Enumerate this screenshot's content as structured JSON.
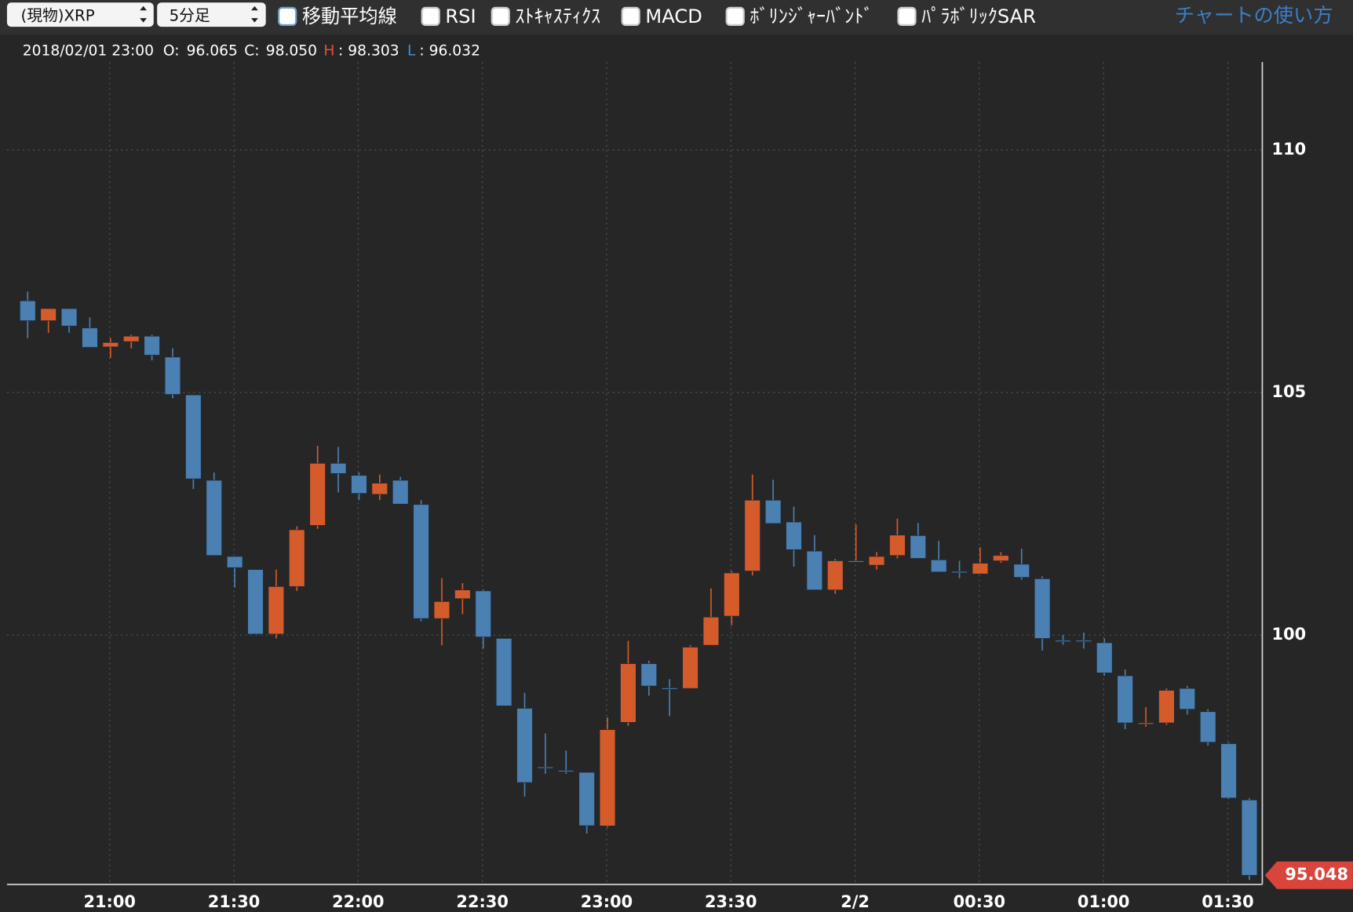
{
  "controls": {
    "symbol": "(現物)XRP",
    "interval": "5分足",
    "indicators": [
      "移動平均線",
      "RSI",
      "ｽﾄｷｬｽﾃｨｸｽ",
      "MACD",
      "ﾎﾞﾘﾝｼﾞｬｰﾊﾞﾝﾄﾞ",
      "ﾊﾟﾗﾎﾞﾘｯｸSAR"
    ],
    "help": "チャートの使い方"
  },
  "info": {
    "datetime": "2018/02/01 23:00",
    "open_label": "O:",
    "open": "96.065",
    "close_label": "C:",
    "close": "98.050",
    "high_label": "H",
    "high": ": 98.303",
    "low_label": "L",
    "low": ": 96.032"
  },
  "chart_data": {
    "type": "candlestick",
    "categories": [
      null,
      null,
      null,
      null,
      "21:00",
      null,
      null,
      null,
      null,
      null,
      "21:30",
      null,
      null,
      null,
      null,
      null,
      "22:00",
      null,
      null,
      null,
      null,
      null,
      "22:30",
      null,
      null,
      null,
      null,
      null,
      "23:00",
      null,
      null,
      null,
      null,
      null,
      "23:30",
      null,
      null,
      null,
      null,
      null,
      "2/2",
      null,
      null,
      null,
      null,
      null,
      "00:30",
      null,
      null,
      null,
      null,
      null,
      "01:00",
      null,
      null,
      null,
      null,
      null,
      "01:30",
      null
    ],
    "open": [
      106.89,
      106.48,
      106.73,
      106.33,
      105.94,
      106.05,
      106.16,
      105.73,
      104.95,
      103.19,
      101.62,
      101.35,
      100.02,
      101.0,
      102.26,
      103.54,
      103.29,
      102.9,
      103.19,
      102.69,
      100.34,
      100.75,
      100.91,
      99.93,
      98.49,
      97.28,
      97.21,
      97.17,
      96.065,
      98.2,
      99.41,
      98.91,
      98.9,
      99.79,
      100.39,
      101.32,
      102.78,
      102.33,
      101.73,
      100.93,
      101.52,
      101.44,
      101.64,
      102.05,
      101.55,
      101.31,
      101.26,
      101.53,
      101.46,
      101.16,
      99.89,
      99.89,
      99.84,
      99.16,
      98.18,
      98.19,
      98.9,
      98.42,
      97.76,
      96.6
    ],
    "high": [
      107.08,
      106.73,
      106.73,
      106.55,
      106.12,
      106.19,
      106.19,
      105.91,
      104.95,
      103.35,
      101.62,
      101.35,
      101.35,
      102.24,
      103.9,
      103.88,
      103.35,
      103.31,
      103.26,
      102.78,
      101.17,
      101.07,
      100.94,
      99.93,
      98.81,
      97.97,
      97.62,
      97.17,
      98.303,
      99.88,
      99.47,
      99.09,
      99.79,
      100.96,
      101.32,
      103.31,
      103.2,
      102.65,
      102.06,
      101.57,
      102.28,
      101.71,
      102.4,
      102.31,
      101.94,
      101.53,
      101.81,
      101.71,
      101.78,
      101.21,
      100.0,
      100.05,
      99.93,
      99.29,
      98.51,
      98.9,
      98.95,
      98.47,
      97.79,
      96.64
    ],
    "low": [
      106.12,
      106.23,
      106.23,
      105.93,
      105.71,
      105.91,
      105.66,
      104.88,
      103.01,
      101.64,
      100.98,
      100.02,
      99.93,
      100.91,
      102.19,
      102.94,
      102.78,
      102.78,
      102.7,
      100.28,
      99.79,
      100.43,
      99.72,
      98.54,
      96.67,
      97.14,
      97.14,
      95.91,
      96.032,
      98.13,
      98.75,
      98.33,
      98.9,
      99.79,
      100.2,
      101.23,
      102.3,
      101.41,
      100.93,
      100.85,
      101.52,
      101.35,
      101.58,
      101.58,
      101.3,
      101.17,
      101.26,
      101.49,
      101.14,
      99.68,
      99.8,
      99.72,
      99.16,
      98.06,
      98.11,
      98.15,
      98.36,
      97.72,
      96.62,
      94.95
    ],
    "close": [
      106.48,
      106.73,
      106.37,
      105.93,
      106.03,
      106.16,
      105.77,
      104.96,
      103.22,
      101.64,
      101.39,
      100.02,
      101.0,
      102.17,
      103.54,
      103.33,
      102.92,
      103.13,
      102.7,
      100.34,
      100.69,
      100.93,
      99.96,
      98.54,
      96.96,
      97.26,
      97.19,
      96.07,
      98.05,
      99.41,
      98.95,
      98.9,
      99.75,
      100.37,
      101.28,
      102.78,
      102.3,
      101.76,
      100.93,
      101.53,
      101.53,
      101.62,
      102.06,
      101.58,
      101.3,
      101.3,
      101.48,
      101.64,
      101.19,
      99.93,
      99.88,
      99.87,
      99.22,
      98.19,
      98.19,
      98.86,
      98.47,
      97.79,
      96.64,
      95.048
    ],
    "up_color": "#d65b2a",
    "down_color": "#4a80b2",
    "ylim": [
      94.86,
      111.81
    ],
    "yticks": [
      100,
      105,
      110
    ],
    "grid": true
  }
}
